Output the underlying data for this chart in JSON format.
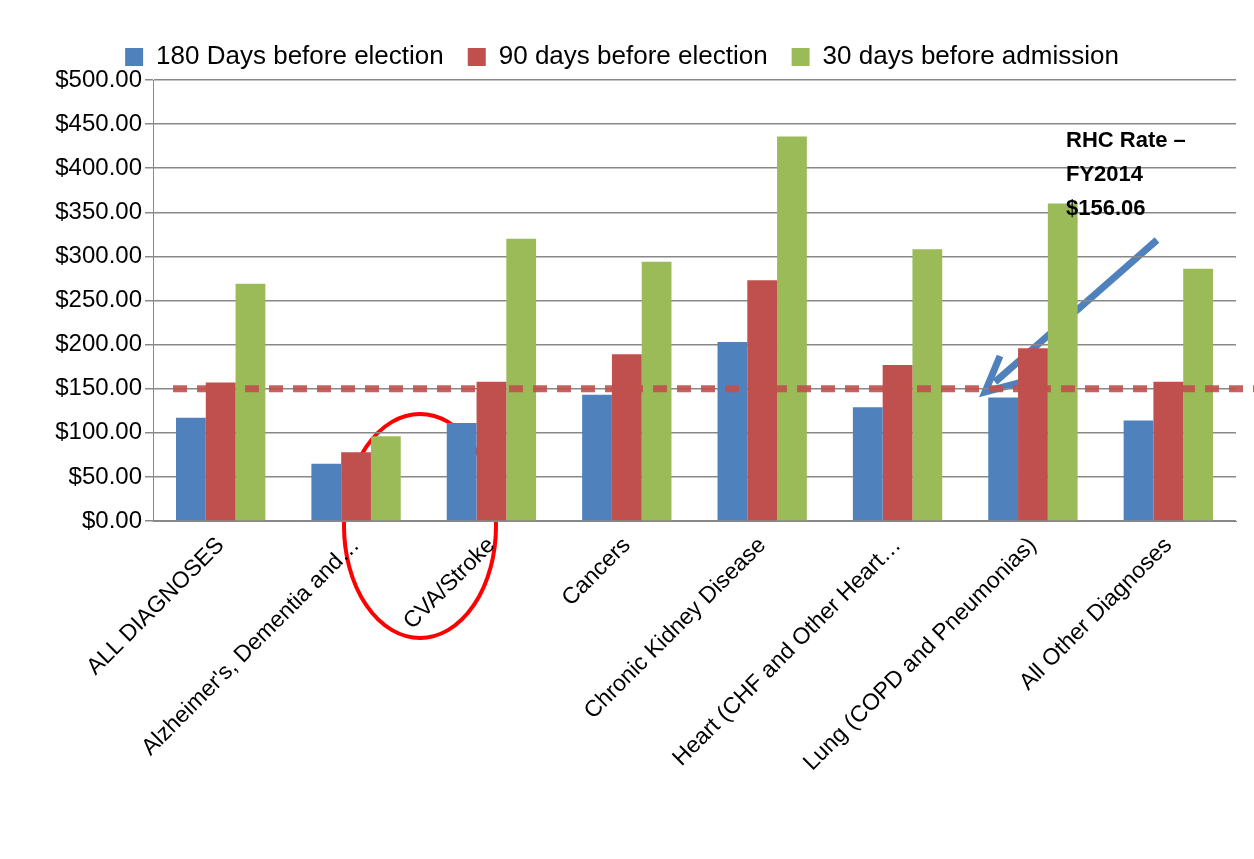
{
  "chart_data": {
    "type": "bar",
    "categories": [
      "ALL DIAGNOSES",
      "Alzheimer's, Dementia and…",
      "CVA/Stroke",
      "Cancers",
      "Chronic Kidney Disease",
      "Heart (CHF and Other Heart…",
      "Lung (COPD and Pneumonias)",
      "All Other Diagnoses"
    ],
    "series": [
      {
        "name": "180 Days before election",
        "color": "#4f81bd",
        "values": [
          117,
          65,
          111,
          143,
          203,
          129,
          140,
          114
        ]
      },
      {
        "name": "90 days before election",
        "color": "#c0504d",
        "values": [
          157,
          78,
          158,
          189,
          273,
          177,
          196,
          158
        ]
      },
      {
        "name": "30 days before admission",
        "color": "#9bbb59",
        "values": [
          269,
          96,
          320,
          294,
          436,
          308,
          360,
          286
        ]
      }
    ],
    "ylim": [
      0,
      500
    ],
    "yticks": [
      {
        "value": 0,
        "label": "$0.00"
      },
      {
        "value": 50,
        "label": "$50.00"
      },
      {
        "value": 100,
        "label": "$100.00"
      },
      {
        "value": 150,
        "label": "$150.00"
      },
      {
        "value": 200,
        "label": "$200.00"
      },
      {
        "value": 250,
        "label": "$250.00"
      },
      {
        "value": 300,
        "label": "$300.00"
      },
      {
        "value": 350,
        "label": "$350.00"
      },
      {
        "value": 400,
        "label": "$400.00"
      },
      {
        "value": 450,
        "label": "$450.00"
      },
      {
        "value": 500,
        "label": "$500.00"
      }
    ],
    "ref_lines": [
      {
        "axis": "y",
        "value": 150,
        "color": "#c0504d",
        "line_style": "dashed"
      }
    ],
    "annotations": [
      "RHC Rate – FY2014 $156.06"
    ],
    "grid": "y",
    "legend": "top"
  }
}
